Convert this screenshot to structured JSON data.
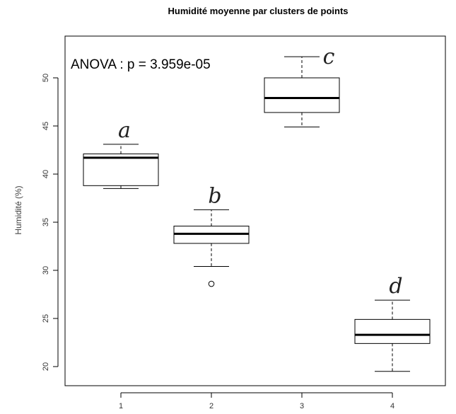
{
  "chart_data": {
    "type": "boxplot",
    "title": "Humidité moyenne par clusters de points",
    "xlabel": "",
    "ylabel": "Humidité (%)",
    "categories": [
      "1",
      "2",
      "3",
      "4"
    ],
    "ylim": [
      18.2,
      54.5
    ],
    "yticks": [
      "20",
      "25",
      "30",
      "35",
      "40",
      "45",
      "50"
    ],
    "boxes": [
      {
        "category": "1",
        "whisker_low": 38.5,
        "q1": 38.8,
        "median": 41.7,
        "q3": 42.1,
        "whisker_high": 43.1,
        "outliers": [],
        "letter": "a"
      },
      {
        "category": "2",
        "whisker_low": 30.4,
        "q1": 32.8,
        "median": 33.8,
        "q3": 34.6,
        "whisker_high": 36.3,
        "outliers": [
          28.6
        ],
        "letter": "b"
      },
      {
        "category": "3",
        "whisker_low": 44.9,
        "q1": 46.4,
        "median": 47.9,
        "q3": 50.0,
        "whisker_high": 52.2,
        "outliers": [],
        "letter": "c"
      },
      {
        "category": "4",
        "whisker_low": 19.5,
        "q1": 22.4,
        "median": 23.3,
        "q3": 24.9,
        "whisker_high": 26.9,
        "outliers": [],
        "letter": "d"
      }
    ],
    "annotation": "ANOVA : p = 3.959e-05",
    "grid": false,
    "legend": "none"
  }
}
